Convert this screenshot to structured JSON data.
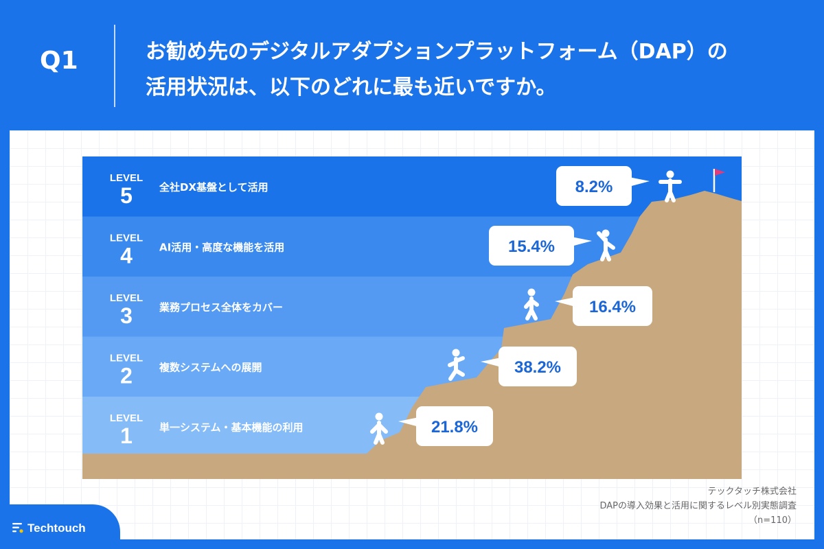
{
  "header": {
    "question_number": "Q1",
    "title_line1": "お勧め先のデジタルアダプションプラットフォーム（DAP）の",
    "title_line2": "活用状況は、以下のどれに最も近いですか。"
  },
  "chart_data": {
    "type": "bar",
    "categories": [
      "全社DX基盤として活用",
      "AI活用・高度な機能を活用",
      "業務プロセス全体をカバー",
      "複数システムへの展開",
      "単一システム・基本機能の利用"
    ],
    "level_label": "LEVEL",
    "level_numbers": [
      "5",
      "4",
      "3",
      "2",
      "1"
    ],
    "values": [
      8.2,
      15.4,
      16.4,
      38.2,
      21.8
    ],
    "value_labels": [
      "8.2%",
      "15.4%",
      "16.4%",
      "38.2%",
      "21.8%"
    ],
    "unit": "%"
  },
  "colors": {
    "background": "#1a73e8",
    "band_level5": "#1a73e8",
    "band_level4": "#3a89ef",
    "band_level3": "#549af2",
    "band_level2": "#6aa9f5",
    "band_level1": "#85bbf7",
    "mountain": "#c8a87e",
    "value_text": "#1a66d6",
    "flag": "#e23b7a"
  },
  "icons": {
    "person": "person-icon",
    "flag": "flag-icon",
    "logo": "techtouch-logo-icon"
  },
  "source": {
    "company": "テックタッチ株式会社",
    "survey": "DAPの導入効果と活用に関するレベル別実態調査",
    "sample": "（n=110）"
  },
  "logo": {
    "text": "Techtouch"
  }
}
